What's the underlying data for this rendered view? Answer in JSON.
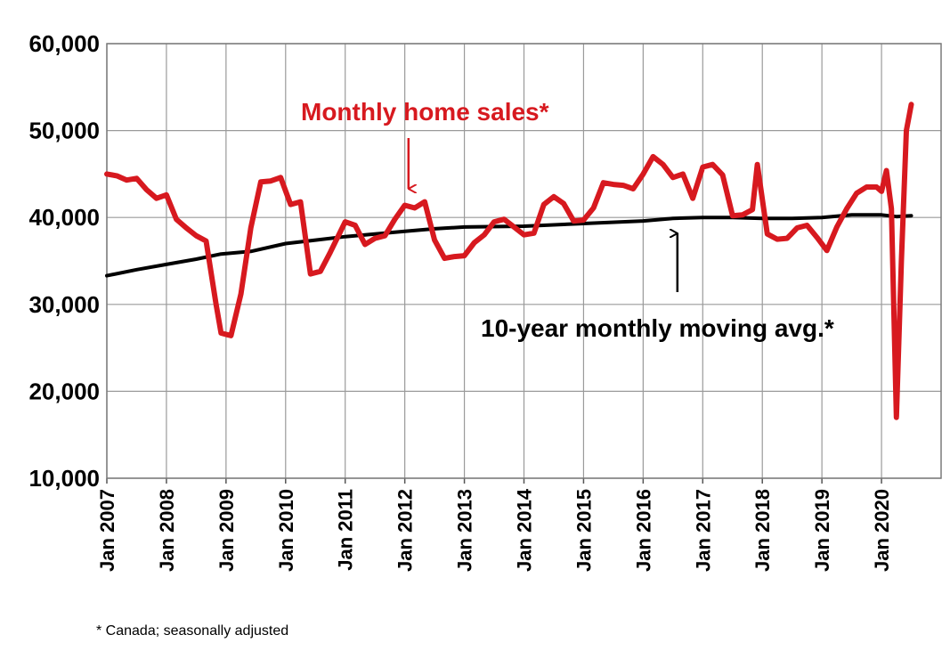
{
  "chart_data": {
    "type": "line",
    "x_unit": "month",
    "x_ticks": [
      "Jan 2007",
      "Jan 2008",
      "Jan 2009",
      "Jan 2010",
      "Jan 2011",
      "Jan 2012",
      "Jan 2013",
      "Jan 2014",
      "Jan 2015",
      "Jan 2016",
      "Jan 2017",
      "Jan 2018",
      "Jan 2019",
      "Jan 2020"
    ],
    "y_ticks": [
      "10,000",
      "20,000",
      "30,000",
      "40,000",
      "50,000",
      "60,000"
    ],
    "ylim": [
      10000,
      60000
    ],
    "xlim": [
      "2007-01",
      "2020-12"
    ],
    "grid": true,
    "series": [
      {
        "name": "Monthly home sales*",
        "color": "#d7191f",
        "x": [
          "2007-01",
          "2007-03",
          "2007-05",
          "2007-07",
          "2007-09",
          "2007-11",
          "2008-01",
          "2008-03",
          "2008-05",
          "2008-07",
          "2008-09",
          "2008-11",
          "2008-12",
          "2009-02",
          "2009-04",
          "2009-06",
          "2009-08",
          "2009-10",
          "2009-12",
          "2010-02",
          "2010-04",
          "2010-06",
          "2010-08",
          "2010-10",
          "2011-01",
          "2011-03",
          "2011-05",
          "2011-07",
          "2011-09",
          "2011-11",
          "2012-01",
          "2012-03",
          "2012-05",
          "2012-07",
          "2012-09",
          "2012-11",
          "2013-01",
          "2013-03",
          "2013-05",
          "2013-07",
          "2013-09",
          "2013-11",
          "2014-01",
          "2014-03",
          "2014-05",
          "2014-07",
          "2014-09",
          "2014-11",
          "2015-01",
          "2015-03",
          "2015-05",
          "2015-07",
          "2015-09",
          "2015-11",
          "2016-01",
          "2016-03",
          "2016-05",
          "2016-07",
          "2016-09",
          "2016-11",
          "2017-01",
          "2017-03",
          "2017-05",
          "2017-07",
          "2017-09",
          "2017-11",
          "2017-12",
          "2018-02",
          "2018-04",
          "2018-06",
          "2018-08",
          "2018-10",
          "2018-12",
          "2019-02",
          "2019-04",
          "2019-06",
          "2019-08",
          "2019-10",
          "2019-12",
          "2020-01",
          "2020-02",
          "2020-03",
          "2020-04",
          "2020-05",
          "2020-06",
          "2020-07"
        ],
        "y": [
          45000,
          44800,
          44300,
          44500,
          43200,
          42200,
          42600,
          39800,
          38800,
          37900,
          37300,
          30000,
          26700,
          26400,
          31200,
          38800,
          44100,
          44200,
          44600,
          41500,
          41800,
          33500,
          33800,
          36000,
          39500,
          39100,
          36900,
          37600,
          37900,
          39800,
          41400,
          41100,
          41800,
          37400,
          35300,
          35500,
          35600,
          37100,
          38000,
          39500,
          39800,
          38900,
          38000,
          38200,
          41500,
          42400,
          41600,
          39600,
          39700,
          41100,
          44000,
          43800,
          43700,
          43300,
          45000,
          47000,
          46100,
          44600,
          45000,
          42200,
          45800,
          46100,
          44900,
          40200,
          40300,
          40900,
          46100,
          38100,
          37500,
          37600,
          38800,
          39100,
          37700,
          36200,
          38900,
          41000,
          42800,
          43500,
          43500,
          43000,
          45400,
          41000,
          17000,
          35000,
          50000,
          53000
        ]
      },
      {
        "name": "10-year monthly moving avg.*",
        "color": "#000000",
        "x": [
          "2007-01",
          "2007-07",
          "2008-01",
          "2008-07",
          "2008-12",
          "2009-06",
          "2010-01",
          "2010-07",
          "2011-01",
          "2011-07",
          "2012-01",
          "2012-07",
          "2013-01",
          "2014-01",
          "2015-01",
          "2016-01",
          "2016-07",
          "2017-01",
          "2017-07",
          "2018-01",
          "2018-07",
          "2019-01",
          "2019-07",
          "2020-01",
          "2020-04",
          "2020-07"
        ],
        "y": [
          33300,
          34000,
          34600,
          35200,
          35800,
          36100,
          37000,
          37400,
          37800,
          38100,
          38400,
          38700,
          38900,
          39000,
          39300,
          39600,
          39900,
          40000,
          40000,
          39900,
          39900,
          40000,
          40300,
          40300,
          40100,
          40200
        ]
      }
    ],
    "annotations": [
      {
        "text": "Monthly home sales*",
        "color": "#d7191f",
        "arrow_to": {
          "x": "2012-03",
          "y": 42000
        }
      },
      {
        "text": "10-year monthly moving avg.*",
        "color": "#000000",
        "arrow_to": {
          "x": "2016-07",
          "y": 40000
        }
      }
    ],
    "footnote": "* Canada; seasonally adjusted"
  }
}
